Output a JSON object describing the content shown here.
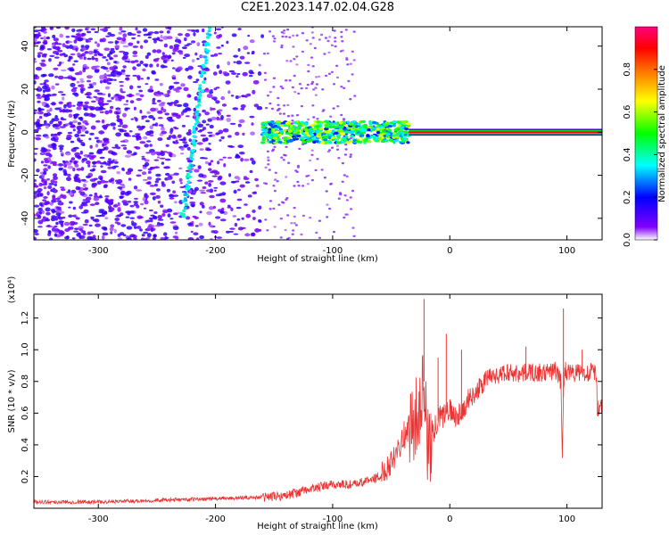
{
  "figure": {
    "title": "C2E1.2023.147.02.04.G28"
  },
  "chart_data": [
    {
      "type": "heatmap",
      "title": "C2E1.2023.147.02.04.G28",
      "xlabel": "Height of straight line (km)",
      "ylabel": "Frequency (Hz)",
      "xlim": [
        -355,
        130
      ],
      "ylim": [
        -50,
        49
      ],
      "x_ticks": [
        -300,
        -200,
        -100,
        0,
        100
      ],
      "y_ticks": [
        -40,
        -20,
        0,
        20,
        40
      ],
      "colorbar": {
        "label": "Normalized spectral amplitude",
        "range": [
          0,
          1
        ],
        "ticks": [
          "0.0",
          "0.2",
          "0.4",
          "0.6",
          "0.8"
        ],
        "colors": [
          "#ffffff",
          "#8000ff",
          "#0000ff",
          "#00ffff",
          "#00ff00",
          "#ffff00",
          "#ff8000",
          "#ff0000",
          "#ff0080"
        ]
      },
      "features": [
        {
          "name": "broadband noise",
          "x_range": [
            -355,
            -160
          ],
          "freq_range": [
            -50,
            49
          ],
          "amplitude": 0.15
        },
        {
          "name": "dispersive trace",
          "x_from": -228,
          "x_to": -205,
          "freq_from": -40,
          "freq_to": 48,
          "amplitude": 0.3
        },
        {
          "name": "carrier band",
          "x_range": [
            -160,
            -35
          ],
          "freq_range": [
            -5,
            5
          ],
          "amplitude": 0.45
        },
        {
          "name": "carrier line",
          "x_range": [
            -35,
            130
          ],
          "freq": 0,
          "amplitude": 0.9
        }
      ]
    },
    {
      "type": "line",
      "xlabel": "Height of straight line (km)",
      "ylabel": "SNR (10 * v/v)",
      "y_multiplier": "(x10⁴)",
      "xlim": [
        -355,
        130
      ],
      "ylim": [
        0,
        1.35
      ],
      "x_ticks": [
        -300,
        -200,
        -100,
        0,
        100
      ],
      "y_ticks": [
        "0.2",
        "0.4",
        "0.6",
        "0.8",
        "1.0",
        "1.2"
      ],
      "color": "#ee3333",
      "x": [
        -355,
        -300,
        -250,
        -200,
        -160,
        -140,
        -120,
        -100,
        -80,
        -60,
        -50,
        -40,
        -35,
        -30,
        -25,
        -22,
        -20,
        -18,
        -15,
        -10,
        -5,
        0,
        5,
        10,
        15,
        20,
        25,
        30,
        35,
        40,
        50,
        60,
        70,
        80,
        90,
        95,
        96,
        97,
        98,
        100,
        110,
        120,
        125,
        126,
        128,
        130
      ],
      "y": [
        0.04,
        0.04,
        0.05,
        0.06,
        0.07,
        0.08,
        0.12,
        0.15,
        0.15,
        0.2,
        0.3,
        0.45,
        0.5,
        0.55,
        0.65,
        0.8,
        0.5,
        0.35,
        0.45,
        0.55,
        0.6,
        0.62,
        0.58,
        0.6,
        0.68,
        0.72,
        0.75,
        0.8,
        0.85,
        0.83,
        0.86,
        0.85,
        0.86,
        0.85,
        0.87,
        0.8,
        0.25,
        0.7,
        0.9,
        0.86,
        0.85,
        0.86,
        0.85,
        0.6,
        0.65,
        0.66
      ],
      "spikes": [
        {
          "x": -22,
          "y": 1.32
        },
        {
          "x": -10,
          "y": 0.95
        },
        {
          "x": -3,
          "y": 1.1
        },
        {
          "x": 10,
          "y": 1.0
        },
        {
          "x": 65,
          "y": 1.02
        },
        {
          "x": 97,
          "y": 1.26
        },
        {
          "x": 113,
          "y": 1.0
        }
      ]
    }
  ]
}
